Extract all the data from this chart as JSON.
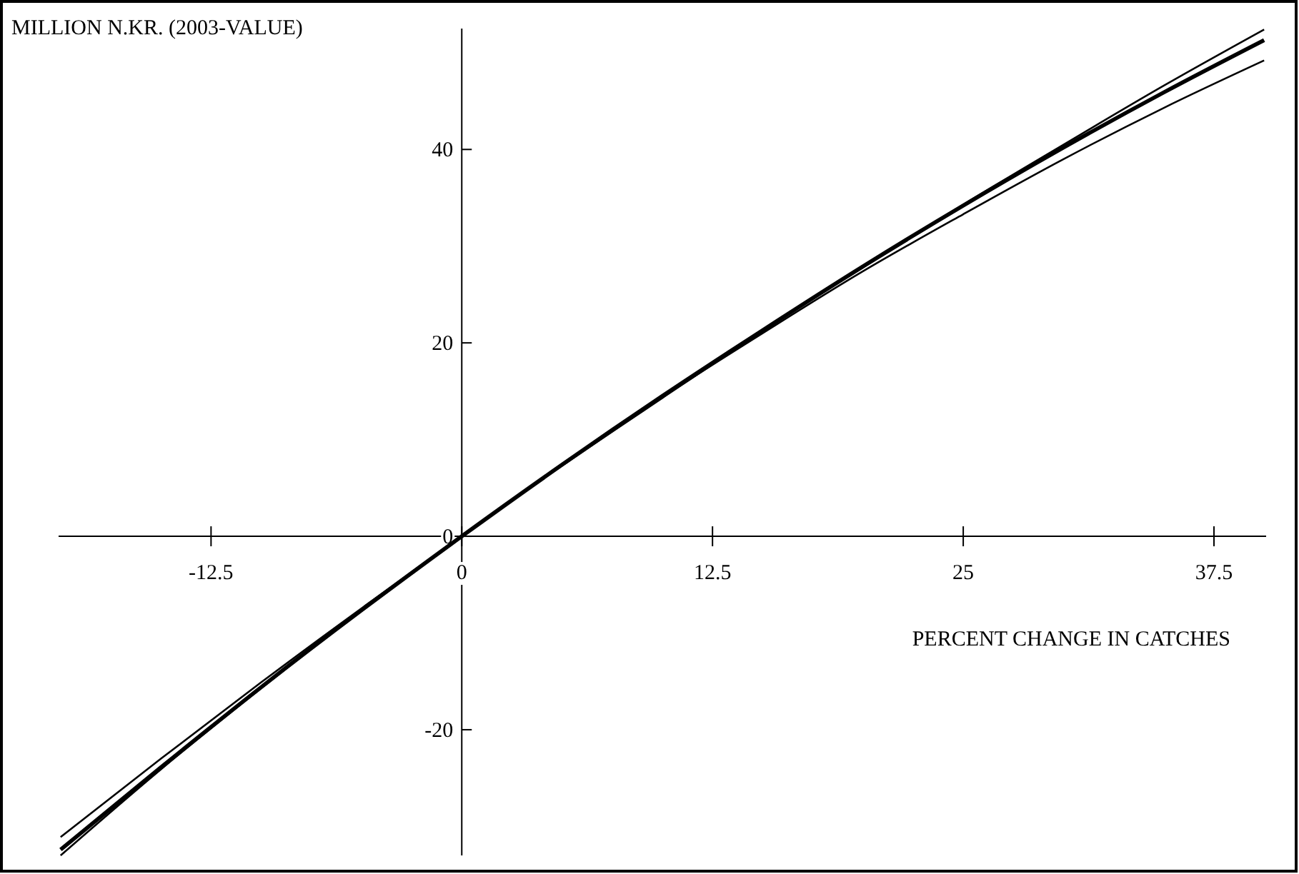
{
  "chart_data": {
    "type": "line",
    "xlabel": "PERCENT CHANGE IN CATCHES",
    "ylabel": "MILLION N.KR. (2003-VALUE)",
    "x": [
      -20,
      -15,
      -10,
      0,
      5,
      10,
      15,
      20,
      25,
      30,
      35,
      40
    ],
    "xlim": [
      -20.1,
      40.1
    ],
    "ylim": [
      -33,
      52.5
    ],
    "xticks": [
      -12.5,
      0,
      12.5,
      25,
      37.5
    ],
    "yticks": [
      -20,
      0,
      20,
      40
    ],
    "grid": false,
    "marker": "none",
    "line_style": "solid",
    "series": [
      {
        "color": "#000000",
        "values": [
          -31.1,
          -23.0,
          -15.1,
          0,
          7.3,
          14.3,
          21.2,
          27.8,
          34.3,
          40.5,
          46.6,
          52.4
        ]
      },
      {
        "color": "#000000",
        "values": [
          -32.4,
          -23.9,
          -15.6,
          0,
          7.4,
          14.5,
          21.3,
          27.9,
          34.2,
          40.2,
          45.9,
          51.3
        ]
      },
      {
        "color": "#000000",
        "values": [
          -33.0,
          -24.1,
          -15.7,
          0,
          7.4,
          14.4,
          21.0,
          27.4,
          33.3,
          39.0,
          44.3,
          49.2
        ]
      }
    ]
  }
}
